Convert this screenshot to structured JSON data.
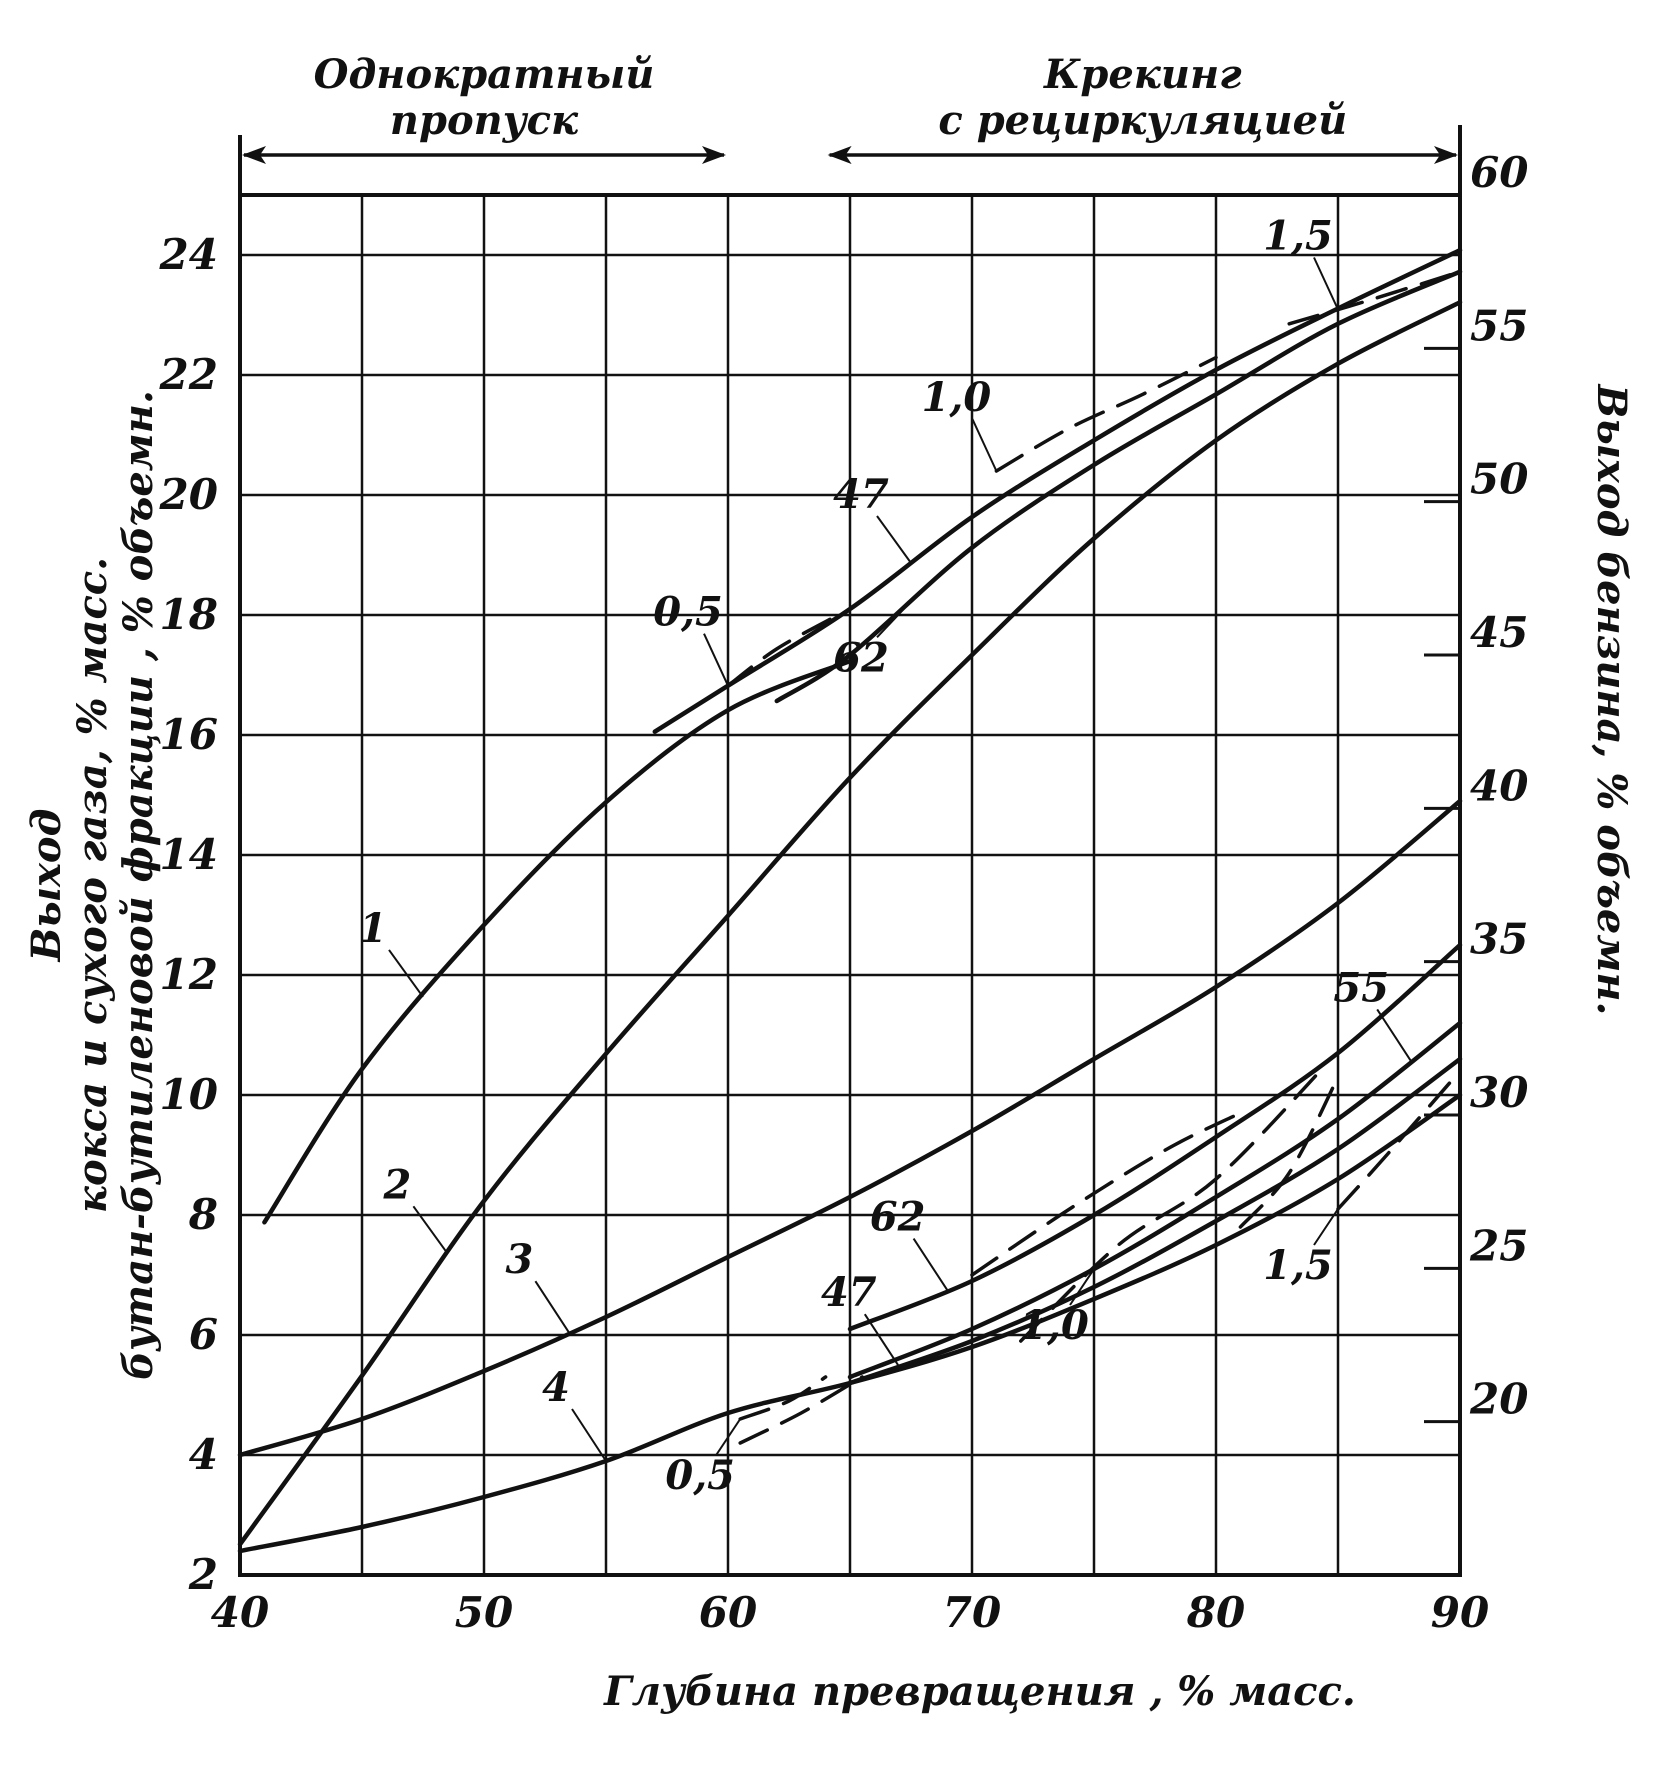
{
  "chart_data": {
    "type": "line",
    "grid": true,
    "x": {
      "label": "Глубина превращения , % масс.",
      "range": [
        40,
        90
      ],
      "ticks": [
        "40",
        "50",
        "60",
        "70",
        "80",
        "90"
      ]
    },
    "y_left": {
      "label_lines": [
        "Выход",
        "кокса и сухого газа, % масс.",
        "бутан-бутиленовой фракции , % объемн."
      ],
      "range": [
        2,
        25
      ],
      "ticks": [
        "2",
        "4",
        "6",
        "8",
        "10",
        "12",
        "14",
        "16",
        "18",
        "20",
        "22",
        "24"
      ]
    },
    "y_right": {
      "label": "Выход бензина, % объемн.",
      "range": [
        15,
        60
      ],
      "ticks": [
        "20",
        "25",
        "30",
        "35",
        "40",
        "45",
        "50",
        "55",
        "60"
      ]
    },
    "regimes": [
      {
        "label_lines": [
          "Однократный",
          "пропуск"
        ],
        "from": 40,
        "to": 60
      },
      {
        "label_lines": [
          "Крекинг",
          "с рециркуляцией"
        ],
        "from": 64,
        "to": 90
      }
    ],
    "series": [
      {
        "name": "1",
        "axis": "right",
        "style": "solid",
        "x": [
          41,
          45,
          50,
          55,
          60,
          65
        ],
        "y": [
          26.5,
          31.5,
          36.2,
          40.2,
          43.2,
          44.8
        ]
      },
      {
        "name": "2",
        "axis": "right",
        "style": "solid",
        "x": [
          40,
          45,
          50,
          55,
          60,
          65,
          70,
          75,
          80,
          85,
          90
        ],
        "y": [
          16,
          21.5,
          27.2,
          32,
          36.5,
          41,
          45,
          48.8,
          52,
          54.5,
          56.5
        ]
      },
      {
        "name": "47",
        "axis": "right",
        "style": "solid",
        "x": [
          57,
          60,
          65,
          70,
          75,
          80,
          85,
          90
        ],
        "y": [
          42.5,
          44,
          46.5,
          49.5,
          52,
          54.3,
          56.3,
          58.2
        ]
      },
      {
        "name": "62",
        "axis": "right",
        "style": "solid",
        "x": [
          62,
          65,
          70,
          75,
          80,
          85,
          90
        ],
        "y": [
          43.5,
          45,
          48.5,
          51.2,
          53.5,
          55.8,
          57.5
        ]
      },
      {
        "name": "0,5",
        "axis": "right",
        "style": "dashed",
        "x": [
          60,
          62,
          64.5
        ],
        "y": [
          44,
          45.2,
          46.3
        ]
      },
      {
        "name": "1,0",
        "axis": "right",
        "style": "dashed",
        "x": [
          71,
          74,
          77,
          80
        ],
        "y": [
          51,
          52.4,
          53.5,
          54.7
        ]
      },
      {
        "name": "1,5",
        "axis": "right",
        "style": "dashed",
        "x": [
          83,
          86,
          90
        ],
        "y": [
          55.8,
          56.5,
          57.5
        ]
      },
      {
        "name": "3",
        "axis": "left",
        "style": "solid",
        "x": [
          40,
          45,
          50,
          55,
          60,
          65,
          70,
          75,
          80,
          85,
          90
        ],
        "y": [
          4,
          4.6,
          5.4,
          6.3,
          7.3,
          8.3,
          9.4,
          10.6,
          11.8,
          13.2,
          14.9
        ]
      },
      {
        "name": "4",
        "axis": "left",
        "style": "solid",
        "x": [
          40,
          45,
          50,
          55,
          60,
          65,
          70,
          75,
          80,
          85,
          90
        ],
        "y": [
          2.4,
          2.8,
          3.3,
          3.9,
          4.7,
          5.2,
          5.8,
          6.6,
          7.5,
          8.6,
          10
        ]
      },
      {
        "name": "62",
        "axis": "left",
        "style": "solid",
        "x": [
          65,
          70,
          75,
          80,
          85,
          90
        ],
        "y": [
          6.1,
          6.9,
          8,
          9.3,
          10.7,
          12.5
        ]
      },
      {
        "name": "55",
        "axis": "left",
        "style": "solid",
        "x": [
          65,
          70,
          75,
          80,
          85,
          90
        ],
        "y": [
          5.3,
          6.1,
          7.1,
          8.3,
          9.6,
          11.2
        ]
      },
      {
        "name": "47",
        "axis": "left",
        "style": "solid",
        "x": [
          65,
          70,
          75,
          80,
          85,
          90
        ],
        "y": [
          5.2,
          5.9,
          6.8,
          7.9,
          9.1,
          10.6
        ]
      },
      {
        "name": "0,5",
        "axis": "left",
        "style": "dashed",
        "x": [
          60.5,
          63,
          65.5
        ],
        "y": [
          4.2,
          4.7,
          5.3
        ]
      },
      {
        "name": "0,5",
        "axis": "left",
        "style": "dashed",
        "x": [
          60.5,
          62.5,
          64
        ],
        "y": [
          4.6,
          4.9,
          5.3
        ]
      },
      {
        "name": "1,0",
        "axis": "left",
        "style": "dashed",
        "x": [
          70,
          74,
          78,
          81
        ],
        "y": [
          7,
          8.1,
          9.1,
          9.7
        ]
      },
      {
        "name": "1,0",
        "axis": "left",
        "style": "dashed",
        "x": [
          72,
          76,
          80,
          84.5
        ],
        "y": [
          5.9,
          7.5,
          8.6,
          10.5
        ]
      },
      {
        "name": "1,5",
        "axis": "left",
        "style": "dashed",
        "x": [
          81,
          83,
          85
        ],
        "y": [
          7.8,
          8.7,
          10.3
        ]
      },
      {
        "name": "1,5",
        "axis": "left",
        "style": "dashed",
        "x": [
          85,
          87,
          90
        ],
        "y": [
          8.1,
          9,
          10.4
        ]
      }
    ],
    "annotations": [
      {
        "text": "1",
        "series_index": 0,
        "x": 47.5,
        "axis": "right"
      },
      {
        "text": "2",
        "series_index": 1,
        "x": 48.5,
        "axis": "right"
      },
      {
        "text": "47",
        "series_index": 2,
        "x": 67.5,
        "axis": "right"
      },
      {
        "text": "62",
        "series_index": 3,
        "x": 67.5,
        "axis": "right"
      },
      {
        "text": "0,5",
        "series_index": 4,
        "x": 60,
        "axis": "right"
      },
      {
        "text": "1,0",
        "series_index": 5,
        "x": 71,
        "axis": "right"
      },
      {
        "text": "1,5",
        "series_index": 6,
        "x": 85,
        "axis": "right"
      },
      {
        "text": "3",
        "series_index": 7,
        "x": 53.5,
        "axis": "left"
      },
      {
        "text": "4",
        "series_index": 8,
        "x": 55,
        "axis": "left"
      },
      {
        "text": "62",
        "series_index": 9,
        "x": 69,
        "axis": "left"
      },
      {
        "text": "55",
        "series_index": 10,
        "x": 88,
        "axis": "left"
      },
      {
        "text": "47",
        "series_index": 11,
        "x": 67,
        "axis": "left"
      },
      {
        "text": "0,5",
        "series_index": 13,
        "x": 60.5,
        "axis": "left"
      },
      {
        "text": "1,0",
        "series_index": 15,
        "x": 75,
        "axis": "left"
      },
      {
        "text": "1,5",
        "series_index": 17,
        "x": 85,
        "axis": "left"
      }
    ]
  }
}
